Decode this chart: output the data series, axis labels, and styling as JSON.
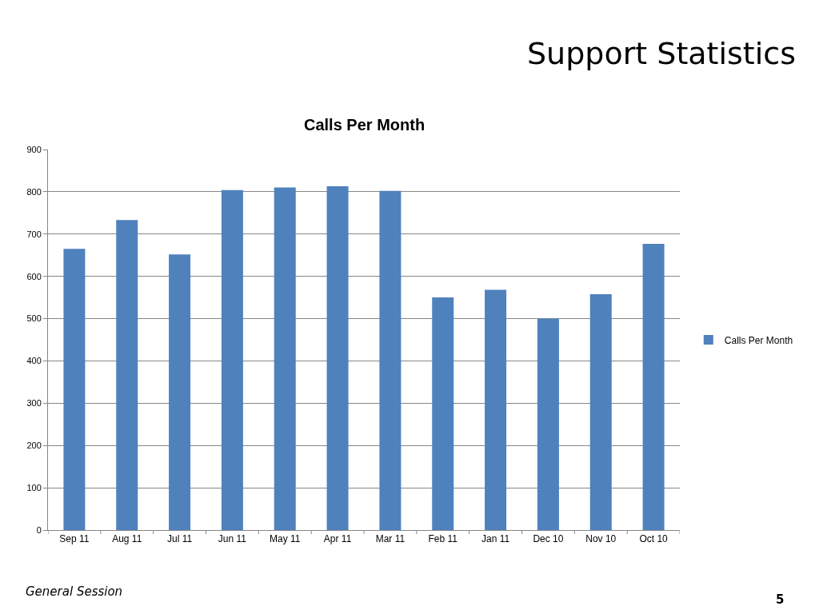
{
  "chart_data": {
    "type": "bar",
    "title": "Support Statistics",
    "subtitle": "Calls Per Month",
    "annotations": [
      "General Session",
      "5"
    ],
    "categories": [
      "Sep 11",
      "Aug 11",
      "Jul 11",
      "Jun 11",
      "May 11",
      "Apr 11",
      "Mar 11",
      "Feb 11",
      "Jan 11",
      "Dec 10",
      "Nov 10",
      "Oct 10"
    ],
    "series": [
      {
        "name": "Calls Per Month",
        "color": "#4f81bd",
        "values": [
          665,
          733,
          652,
          804,
          810,
          813,
          802,
          550,
          568,
          500,
          558,
          677
        ]
      }
    ],
    "ylim": [
      0,
      900
    ],
    "yticks": [
      0,
      100,
      200,
      300,
      400,
      500,
      600,
      700,
      800,
      900
    ],
    "grid": "y",
    "legend": "right"
  }
}
